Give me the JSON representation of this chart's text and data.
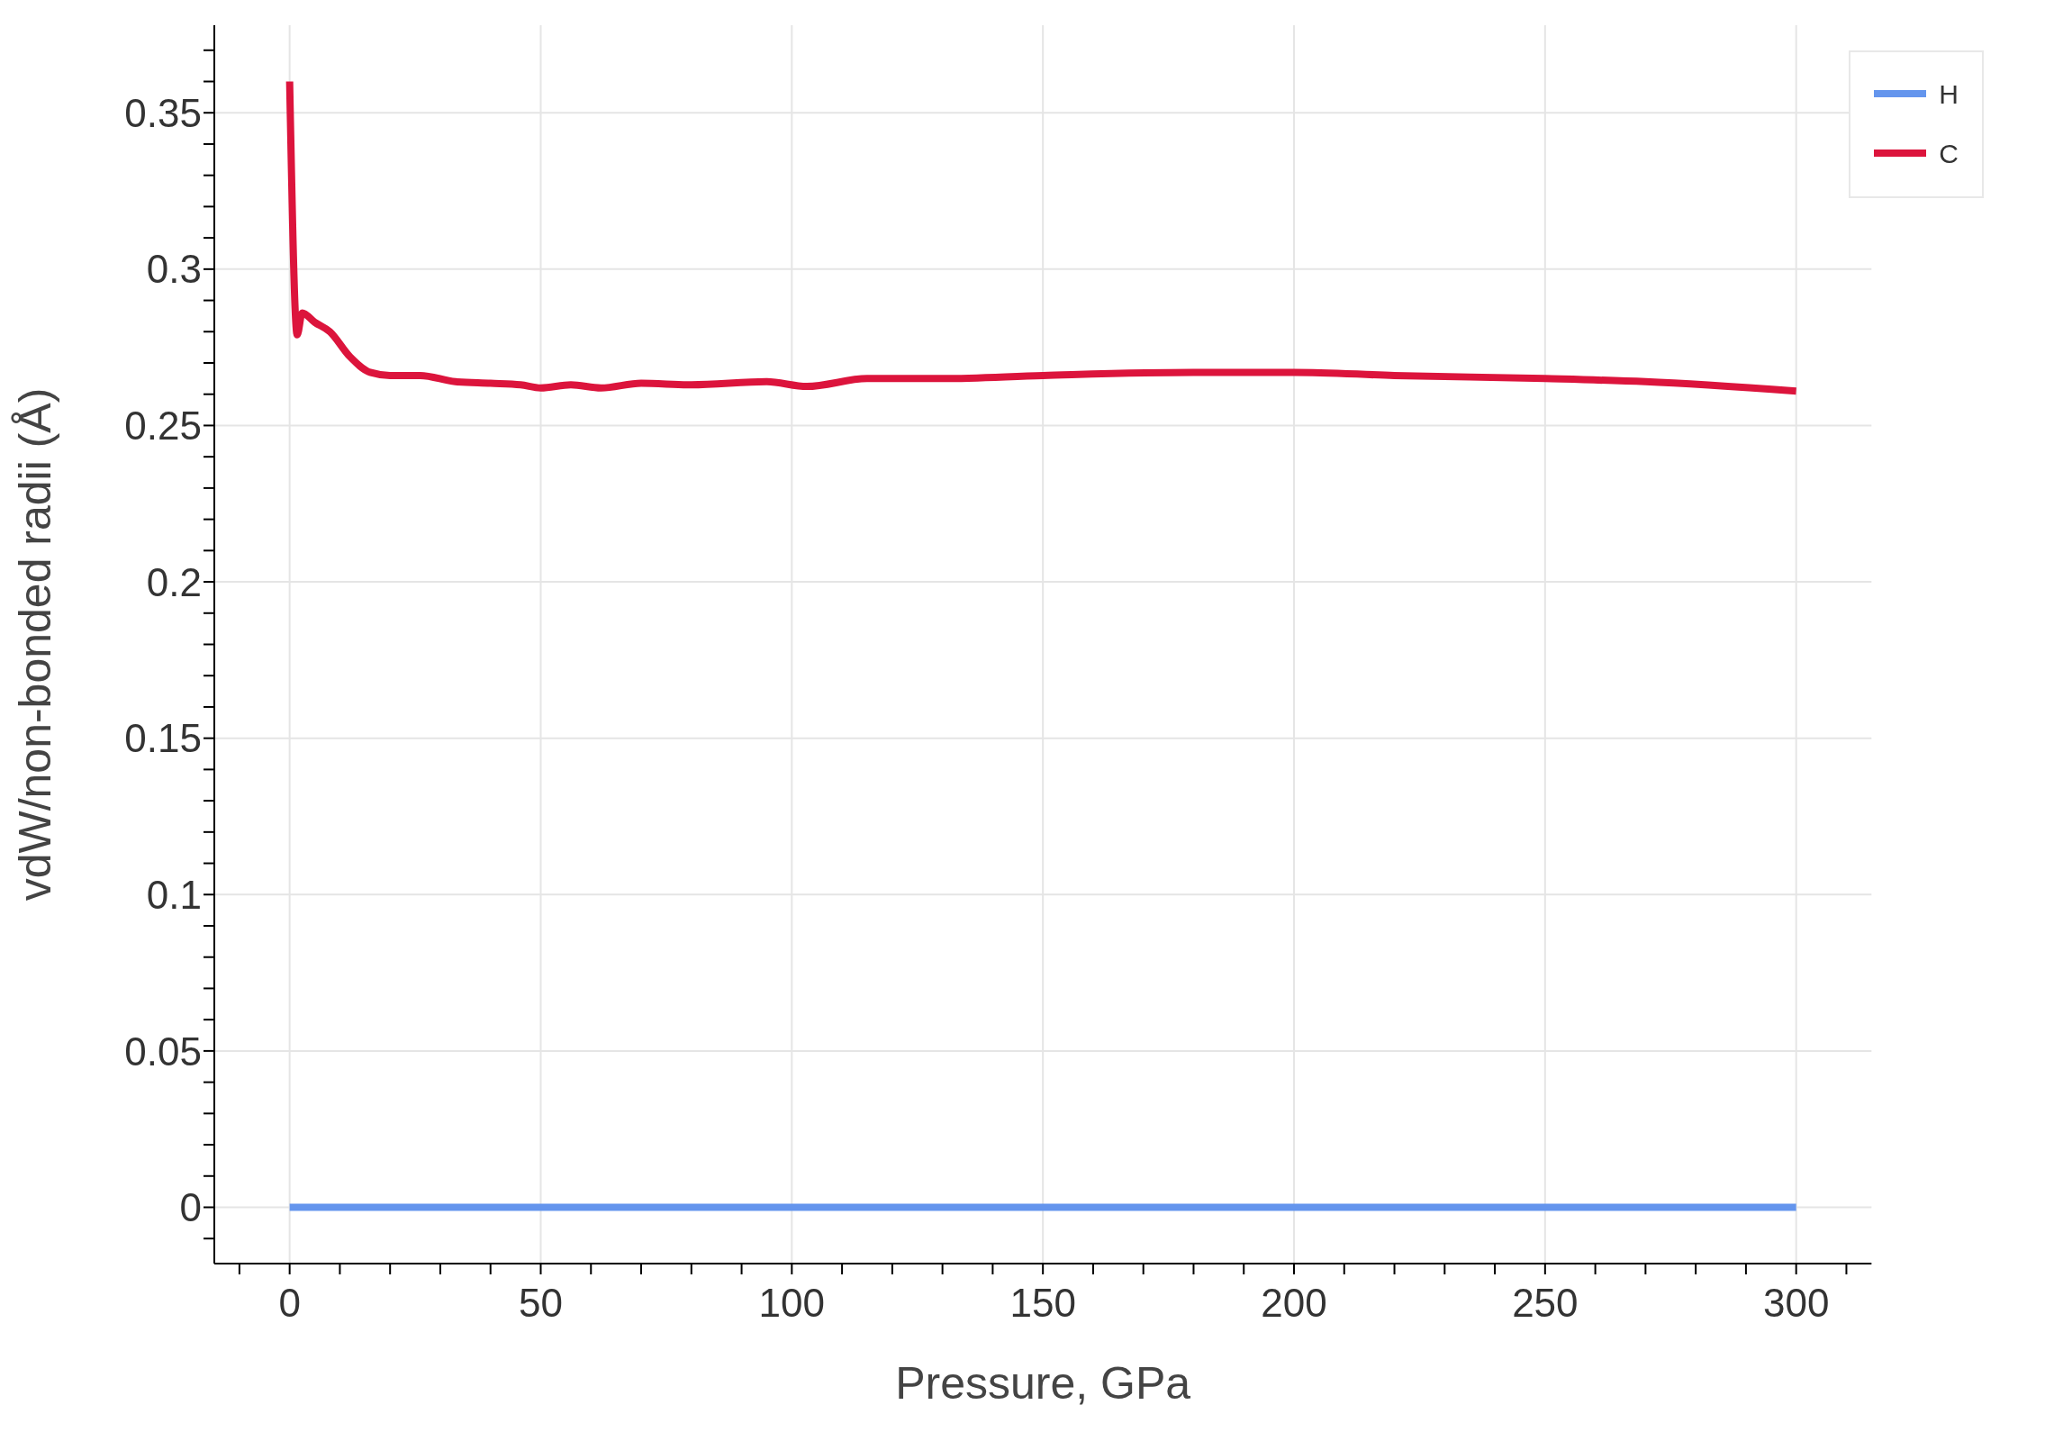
{
  "chart_data": {
    "type": "line",
    "xlabel": "Pressure, GPa",
    "ylabel": "vdW/non-bonded radii (Å)",
    "xlim": [
      -15,
      315
    ],
    "ylim": [
      -0.018,
      0.378
    ],
    "xticks": [
      {
        "value": -10,
        "label": null
      },
      0,
      {
        "value": 10,
        "label": null
      },
      {
        "value": 20,
        "label": null
      },
      {
        "value": 30,
        "label": null
      },
      {
        "value": 40,
        "label": null
      },
      50,
      {
        "value": 60,
        "label": null
      },
      {
        "value": 70,
        "label": null
      },
      {
        "value": 80,
        "label": null
      },
      {
        "value": 90,
        "label": null
      },
      100,
      {
        "value": 110,
        "label": null
      },
      {
        "value": 120,
        "label": null
      },
      {
        "value": 130,
        "label": null
      },
      {
        "value": 140,
        "label": null
      },
      150,
      {
        "value": 160,
        "label": null
      },
      {
        "value": 170,
        "label": null
      },
      {
        "value": 180,
        "label": null
      },
      {
        "value": 190,
        "label": null
      },
      200,
      {
        "value": 210,
        "label": null
      },
      {
        "value": 220,
        "label": null
      },
      {
        "value": 230,
        "label": null
      },
      {
        "value": 240,
        "label": null
      },
      250,
      {
        "value": 260,
        "label": null
      },
      {
        "value": 270,
        "label": null
      },
      {
        "value": 280,
        "label": null
      },
      {
        "value": 290,
        "label": null
      },
      300,
      {
        "value": 310,
        "label": null
      }
    ],
    "yticks": [
      {
        "value": -0.01,
        "label": null
      },
      0,
      {
        "value": 0.01,
        "label": null
      },
      {
        "value": 0.02,
        "label": null
      },
      {
        "value": 0.03,
        "label": null
      },
      {
        "value": 0.04,
        "label": null
      },
      0.05,
      {
        "value": 0.06,
        "label": null
      },
      {
        "value": 0.07,
        "label": null
      },
      {
        "value": 0.08,
        "label": null
      },
      {
        "value": 0.09,
        "label": null
      },
      0.1,
      {
        "value": 0.11,
        "label": null
      },
      {
        "value": 0.12,
        "label": null
      },
      {
        "value": 0.13,
        "label": null
      },
      {
        "value": 0.14,
        "label": null
      },
      0.15,
      {
        "value": 0.16,
        "label": null
      },
      {
        "value": 0.17,
        "label": null
      },
      {
        "value": 0.18,
        "label": null
      },
      {
        "value": 0.19,
        "label": null
      },
      0.2,
      {
        "value": 0.21,
        "label": null
      },
      {
        "value": 0.22,
        "label": null
      },
      {
        "value": 0.23,
        "label": null
      },
      {
        "value": 0.24,
        "label": null
      },
      0.25,
      {
        "value": 0.26,
        "label": null
      },
      {
        "value": 0.27,
        "label": null
      },
      {
        "value": 0.28,
        "label": null
      },
      {
        "value": 0.29,
        "label": null
      },
      0.3,
      {
        "value": 0.31,
        "label": null
      },
      {
        "value": 0.32,
        "label": null
      },
      {
        "value": 0.33,
        "label": null
      },
      {
        "value": 0.34,
        "label": null
      },
      0.35,
      {
        "value": 0.36,
        "label": null
      },
      {
        "value": 0.37,
        "label": null
      }
    ],
    "grid": true,
    "legend": "top right",
    "marker": "none",
    "line_style": "solid",
    "series": [
      {
        "name": "H",
        "color": "#6495ed",
        "x": [
          0,
          300
        ],
        "values": [
          0,
          0
        ]
      },
      {
        "name": "C",
        "color": "#dc143c",
        "x": [
          0,
          1.5,
          2.5,
          5,
          8,
          12,
          16,
          20,
          26,
          33,
          40,
          46,
          50,
          56,
          62,
          70,
          80,
          95,
          103,
          115,
          130,
          150,
          180,
          200,
          220,
          250,
          270,
          300
        ],
        "values": [
          0.36,
          0.279,
          0.286,
          0.283,
          0.28,
          0.272,
          0.267,
          0.266,
          0.266,
          0.264,
          0.2635,
          0.263,
          0.262,
          0.263,
          0.262,
          0.2635,
          0.263,
          0.264,
          0.2625,
          0.265,
          0.265,
          0.266,
          0.267,
          0.267,
          0.266,
          0.265,
          0.264,
          0.261
        ]
      }
    ]
  }
}
